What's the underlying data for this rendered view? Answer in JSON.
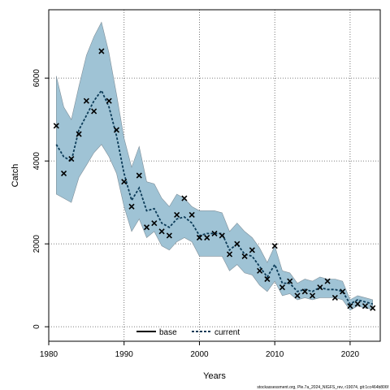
{
  "chart_data": {
    "type": "line",
    "xlabel": "Years",
    "ylabel": "Catch",
    "xlim": [
      1980,
      2024
    ],
    "ylim": [
      -350,
      7650
    ],
    "x_ticks": [
      1980,
      1990,
      2000,
      2010,
      2020
    ],
    "y_ticks": [
      0,
      2000,
      4000,
      6000
    ],
    "grid": true,
    "grid_style": "dotted",
    "legend_position": "bottom-center",
    "colors": {
      "band": "#9fc3d5",
      "band_edge": "#7f8f99",
      "current_line": "#0b3b58",
      "points": "#000000"
    },
    "legend": [
      {
        "label": "base",
        "style": "solid",
        "color": "#000000"
      },
      {
        "label": "current",
        "style": "dashed",
        "color": "#0b3b58"
      }
    ],
    "x": [
      1981,
      1982,
      1983,
      1984,
      1985,
      1986,
      1987,
      1988,
      1989,
      1990,
      1991,
      1992,
      1993,
      1994,
      1995,
      1996,
      1997,
      1998,
      1999,
      2000,
      2001,
      2002,
      2003,
      2004,
      2005,
      2006,
      2007,
      2008,
      2009,
      2010,
      2011,
      2012,
      2013,
      2014,
      2015,
      2016,
      2017,
      2018,
      2019,
      2020,
      2021,
      2022,
      2023
    ],
    "series": [
      {
        "name": "current",
        "values": [
          4400,
          4100,
          4000,
          4750,
          5100,
          5450,
          5700,
          5300,
          4600,
          3700,
          3050,
          3350,
          2800,
          2850,
          2500,
          2400,
          2600,
          2650,
          2500,
          2200,
          2250,
          2250,
          2250,
          1850,
          2000,
          1750,
          1700,
          1450,
          1200,
          1500,
          1050,
          1050,
          850,
          900,
          850,
          950,
          900,
          900,
          850,
          550,
          650,
          600,
          550
        ]
      }
    ],
    "band": {
      "upper": [
        6050,
        5300,
        5000,
        5800,
        6550,
        7000,
        7350,
        6600,
        5600,
        4550,
        3850,
        4350,
        3500,
        3450,
        3100,
        2900,
        3200,
        3100,
        2900,
        2800,
        2800,
        2800,
        2750,
        2300,
        2500,
        2300,
        2150,
        1900,
        1550,
        1950,
        1350,
        1300,
        1050,
        1150,
        1100,
        1200,
        1150,
        1150,
        1100,
        650,
        750,
        700,
        650
      ],
      "lower": [
        3200,
        3100,
        3000,
        3600,
        3900,
        4200,
        4400,
        4100,
        3700,
        2900,
        2300,
        2600,
        2150,
        2300,
        1950,
        1850,
        2050,
        2150,
        2050,
        1700,
        1700,
        1700,
        1700,
        1350,
        1500,
        1300,
        1250,
        1000,
        850,
        1100,
        750,
        800,
        650,
        700,
        650,
        700,
        700,
        700,
        650,
        400,
        500,
        450,
        420
      ]
    },
    "observed": [
      4850,
      3700,
      4050,
      4650,
      5450,
      5200,
      6650,
      5450,
      4750,
      3500,
      2900,
      3650,
      2400,
      2500,
      2300,
      2200,
      2700,
      3100,
      2700,
      2150,
      2150,
      2250,
      2200,
      1750,
      2000,
      1700,
      1850,
      1350,
      1150,
      1950,
      950,
      1100,
      750,
      850,
      750,
      950,
      1100,
      700,
      850,
      500,
      550,
      500,
      450
    ]
  },
  "footer": {
    "note": "stockassessment.org, Ple.7a_2024_NIGFS_rev, r19074, git:1cc464b806f"
  }
}
